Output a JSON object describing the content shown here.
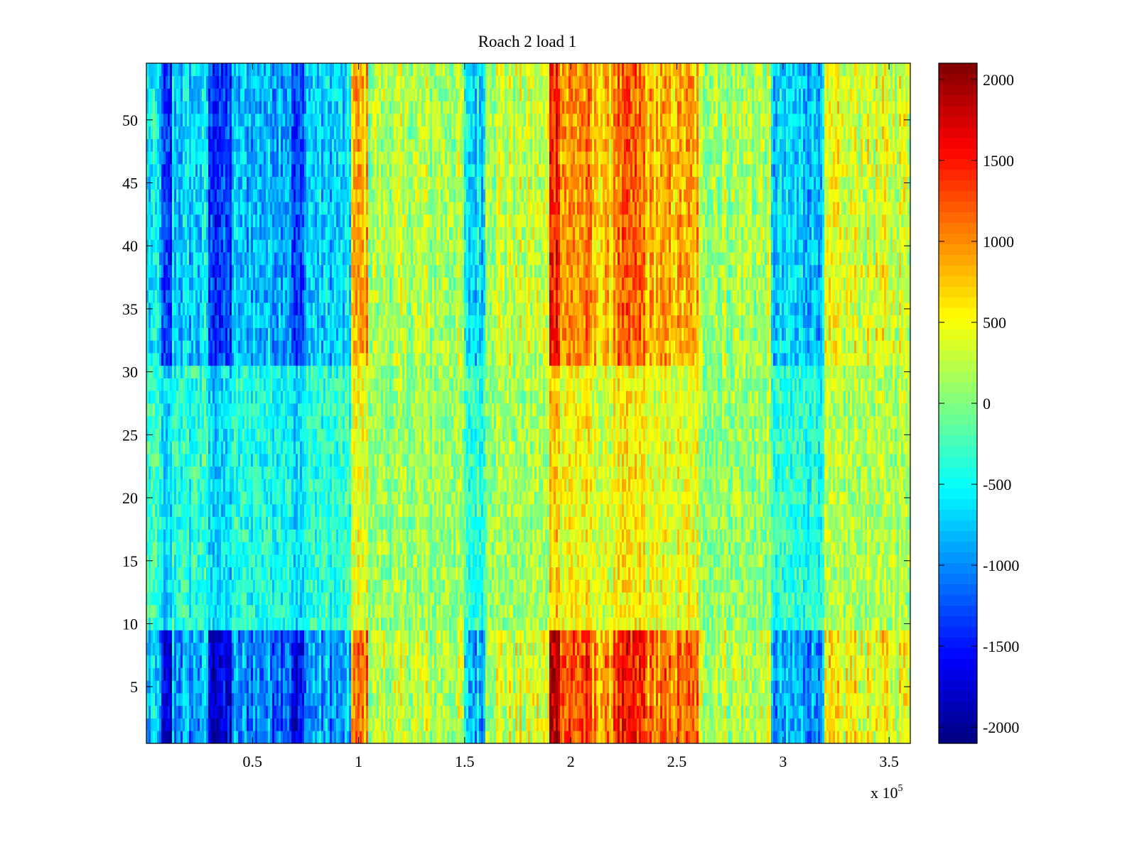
{
  "chart_data": {
    "type": "heatmap",
    "title": "Roach 2 load 1",
    "xlabel": "",
    "ylabel": "",
    "x_exponent_label": {
      "base": "x 10",
      "exp": "5"
    },
    "xlim": [
      0,
      3.6
    ],
    "ylim": [
      0.5,
      54.5
    ],
    "x_ticks": [
      0.5,
      1,
      1.5,
      2,
      2.5,
      3,
      3.5
    ],
    "x_tick_labels": [
      "0.5",
      "1",
      "1.5",
      "2",
      "2.5",
      "3",
      "3.5"
    ],
    "y_ticks": [
      5,
      10,
      15,
      20,
      25,
      30,
      35,
      40,
      45,
      50
    ],
    "y_tick_labels": [
      "5",
      "10",
      "15",
      "20",
      "25",
      "30",
      "35",
      "40",
      "45",
      "50"
    ],
    "colorbar": {
      "colormap": "jet",
      "clim": [
        -2100,
        2100
      ],
      "ticks": [
        2000,
        1500,
        1000,
        500,
        0,
        -500,
        -1000,
        -1500,
        -2000
      ],
      "tick_labels": [
        "2000",
        "1500",
        "1000",
        "500",
        "0",
        "-500",
        "-1000",
        "-1500",
        "-2000"
      ]
    },
    "rows": 54,
    "x_band_edges": [
      0,
      0.07,
      0.12,
      0.27,
      0.29,
      0.4,
      0.68,
      0.74,
      0.97,
      1.05,
      1.5,
      1.6,
      1.9,
      1.95,
      2.1,
      2.2,
      2.35,
      2.6,
      2.95,
      3.2,
      3.6
    ],
    "x_band_base_values": [
      -700,
      -1600,
      -800,
      -700,
      -1500,
      -900,
      -1500,
      -800,
      900,
      200,
      -700,
      300,
      1700,
      1100,
      800,
      1200,
      900,
      200,
      -800,
      400
    ],
    "row_band_edges": [
      0.5,
      9.5,
      30.5,
      54.5
    ],
    "row_band_scale": [
      1.15,
      0.45,
      0.9
    ],
    "noise_amplitude": 350,
    "grid": false
  }
}
